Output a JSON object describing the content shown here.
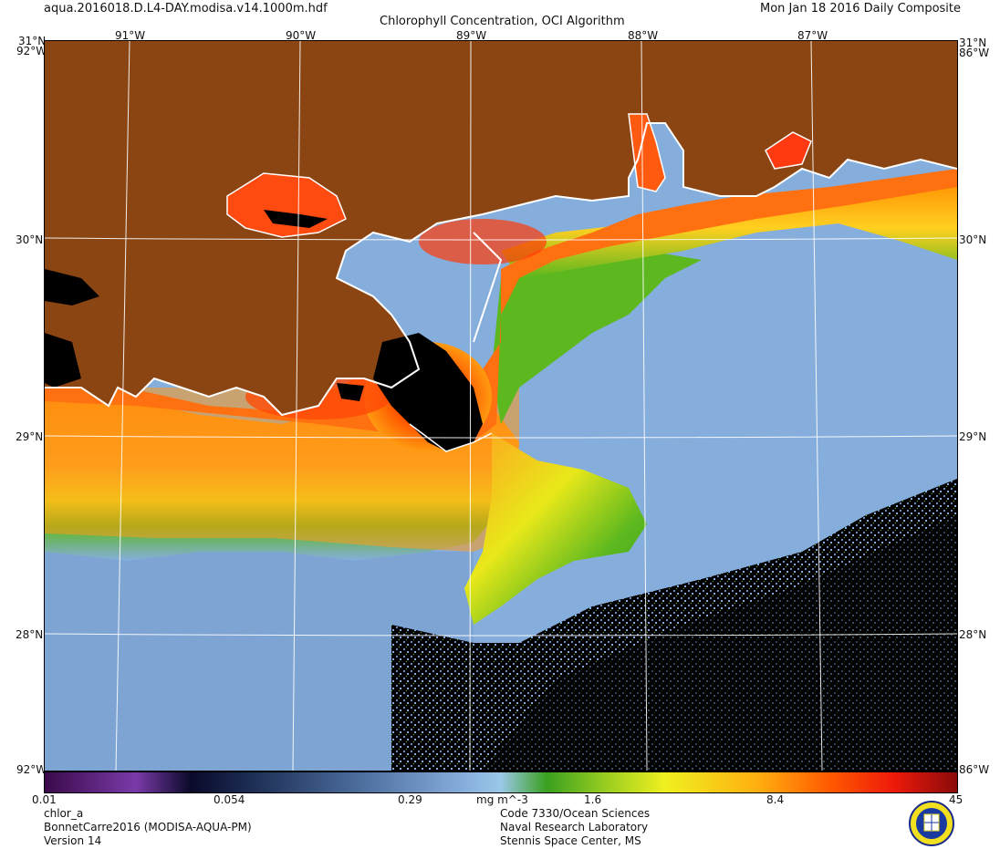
{
  "header": {
    "filename": "aqua.2016018.D.L4-DAY.modisa.v14.1000m.hdf",
    "title": "Chlorophyll Concentration, OCI Algorithm",
    "date": "Mon Jan 18 2016 Daily Composite"
  },
  "map": {
    "lon_labels": [
      "91°W",
      "90°W",
      "89°W",
      "88°W",
      "87°W"
    ],
    "lat_labels": [
      "30°N",
      "29°N",
      "28°N"
    ],
    "corner_top_left": "31°N",
    "corner_top_right": "31°N",
    "corner_top_right_sub": "86°W",
    "corner_top_left_sub": "92°W",
    "corner_bottom_left": "92°W",
    "corner_bottom_right": "86°W",
    "colors": {
      "land": "#8B4513",
      "no_data": "#000000",
      "low": "#86aedd",
      "mid": "#58b820",
      "yellow": "#e8e81a",
      "high": "#ff8c00",
      "peak": "#ee1a0a",
      "coast": "#ffffff"
    }
  },
  "colorbar": {
    "tick_labels": [
      "0.01",
      "0.054",
      "0.29",
      "mg m^-3",
      "1.6",
      "8.4",
      "45"
    ]
  },
  "footer": {
    "left": [
      "chlor_a",
      "BonnetCarre2016 (MODISA-AQUA-PM)",
      "Version 14"
    ],
    "center": [
      "Code 7330/Ocean Sciences",
      "Naval Research Laboratory",
      "Stennis Space Center, MS"
    ]
  }
}
